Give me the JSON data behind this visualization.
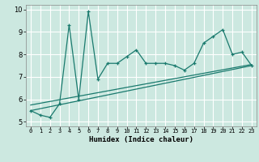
{
  "title": "",
  "xlabel": "Humidex (Indice chaleur)",
  "bg_color": "#cce8e0",
  "grid_color": "#ffffff",
  "line_color": "#1a7a6e",
  "xlim": [
    -0.5,
    23.5
  ],
  "ylim": [
    4.8,
    10.2
  ],
  "xticks": [
    0,
    1,
    2,
    3,
    4,
    5,
    6,
    7,
    8,
    9,
    10,
    11,
    12,
    13,
    14,
    15,
    16,
    17,
    18,
    19,
    20,
    21,
    22,
    23
  ],
  "yticks": [
    5,
    6,
    7,
    8,
    9,
    10
  ],
  "main_x": [
    0,
    1,
    2,
    3,
    4,
    5,
    6,
    7,
    8,
    9,
    10,
    11,
    12,
    13,
    14,
    15,
    16,
    17,
    18,
    19,
    20,
    21,
    22,
    23
  ],
  "main_y": [
    5.5,
    5.3,
    5.2,
    5.8,
    9.3,
    6.0,
    9.9,
    6.9,
    7.6,
    7.6,
    7.9,
    8.2,
    7.6,
    7.6,
    7.6,
    7.5,
    7.3,
    7.6,
    8.5,
    8.8,
    9.1,
    8.0,
    8.1,
    7.5
  ],
  "trend1_x": [
    0,
    23
  ],
  "trend1_y": [
    5.5,
    7.5
  ],
  "trend2_x": [
    0,
    23
  ],
  "trend2_y": [
    5.75,
    7.55
  ]
}
